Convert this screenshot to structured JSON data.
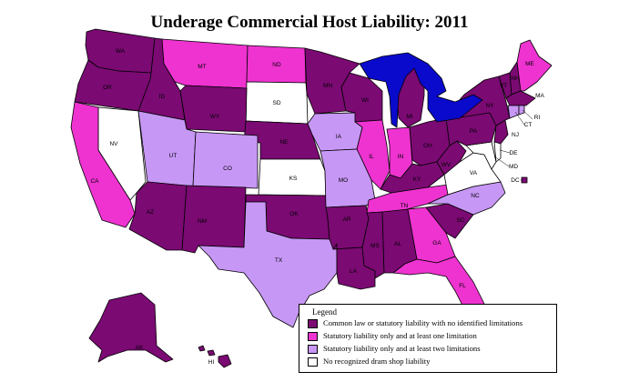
{
  "title": "Underage Commercial Host Liability: 2011",
  "colors": {
    "common_law": "#7b0a73",
    "one_limitation": "#ee33d0",
    "two_limitations": "#c797f5",
    "none": "#ffffff",
    "lakes": "#0a0acc",
    "border": "#000000"
  },
  "legend": {
    "title": "Legend",
    "items": [
      {
        "label": "Common law or statutory liability with no identified limitations",
        "color": "#7b0a73"
      },
      {
        "label": "Statutory liability only and at least one limitation",
        "color": "#ee33d0"
      },
      {
        "label": "Statutory liability only and at least two limitations",
        "color": "#c797f5"
      },
      {
        "label": "No recognized dram shop liability",
        "color": "#ffffff"
      }
    ]
  },
  "state_labels": {
    "WA": "WA",
    "OR": "OR",
    "ID": "ID",
    "MT": "MT",
    "ND": "ND",
    "SD": "SD",
    "WY": "WY",
    "NE": "NE",
    "NV": "NV",
    "CA": "CA",
    "UT": "UT",
    "CO": "CO",
    "KS": "KS",
    "AZ": "AZ",
    "NM": "NM",
    "OK": "OK",
    "TX": "TX",
    "MN": "MN",
    "IA": "IA",
    "MO": "MO",
    "AR": "AR",
    "LA": "LA",
    "WI": "WI",
    "IL": "IL",
    "MI": "MI",
    "IN": "IN",
    "OH": "OH",
    "KY": "KY",
    "TN": "TN",
    "MS": "MS",
    "AL": "AL",
    "GA": "GA",
    "FL": "FL",
    "SC": "SC",
    "NC": "NC",
    "VA": "VA",
    "WV": "WV",
    "PA": "PA",
    "NY": "NY",
    "VT": "VT",
    "NH": "NH",
    "ME": "ME",
    "MA": "MA",
    "RI": "RI",
    "CT": "CT",
    "NJ": "NJ",
    "DE": "DE",
    "MD": "MD",
    "DC": "DC",
    "AK": "AK",
    "HI": "HI"
  }
}
